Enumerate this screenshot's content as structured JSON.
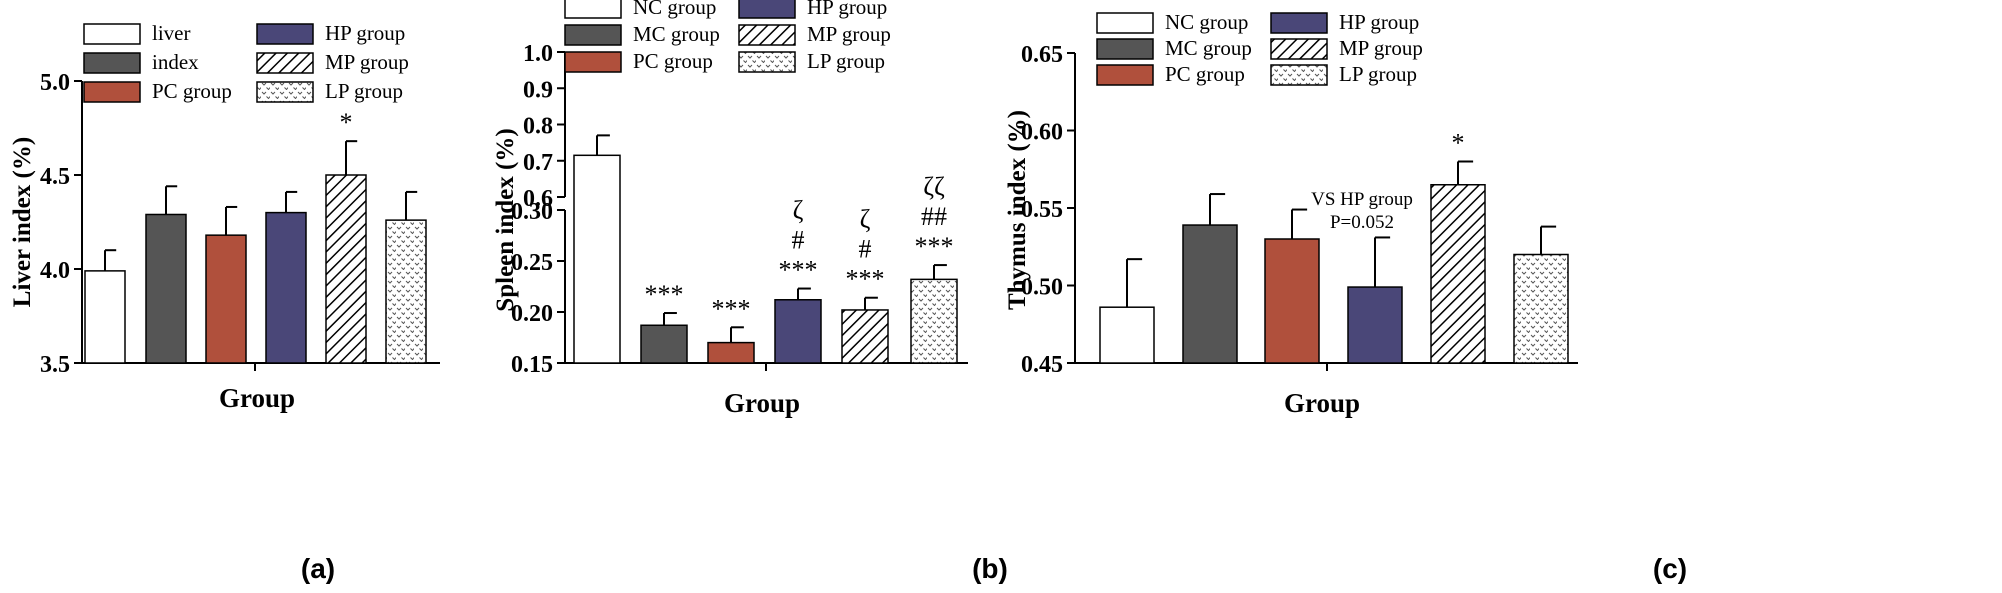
{
  "figure": {
    "panel_labels": [
      "(a)",
      "(b)",
      "(c)"
    ]
  },
  "colors": {
    "NC": "#ffffff",
    "MC": "#555555",
    "PC": "#b0503c",
    "HP": "#4a4778",
    "MP": "hatch",
    "LP": "dots",
    "axis": "#000000"
  },
  "chart_data": [
    {
      "type": "bar",
      "panel": "(a)",
      "title": "",
      "xlabel": "Group",
      "ylabel": "Liver index (%)",
      "ylim": [
        3.5,
        5.0
      ],
      "yticks": [
        "3.5",
        "4.0",
        "4.5",
        "5.0"
      ],
      "categories": [
        "liver",
        "index",
        "PC group",
        "HP group",
        "MP group",
        "LP group"
      ],
      "legend": [
        "liver",
        "index",
        "PC group",
        "HP group",
        "MP group",
        "LP group"
      ],
      "values": [
        3.99,
        4.29,
        4.18,
        4.3,
        4.5,
        4.26
      ],
      "errors": [
        0.11,
        0.15,
        0.15,
        0.11,
        0.18,
        0.15
      ],
      "annotations": [
        "",
        "",
        "",
        "",
        "*",
        ""
      ]
    },
    {
      "type": "bar",
      "panel": "(b)",
      "title": "",
      "xlabel": "Group",
      "ylabel": "Spleen index (%)",
      "broken_axis": true,
      "ylim_lower": [
        0.15,
        0.3
      ],
      "ylim_upper": [
        0.6,
        1.0
      ],
      "yticks_lower": [
        "0.15",
        "0.20",
        "0.25",
        "0.30"
      ],
      "yticks_upper": [
        "0.6",
        "0.7",
        "0.8",
        "0.9",
        "1.0"
      ],
      "categories": [
        "NC group",
        "MC group",
        "PC group",
        "HP group",
        "MP group",
        "LP group"
      ],
      "legend": [
        "NC group",
        "MC group",
        "PC group",
        "HP group",
        "MP group",
        "LP group"
      ],
      "values": [
        0.715,
        0.187,
        0.17,
        0.212,
        0.202,
        0.232
      ],
      "errors": [
        0.055,
        0.012,
        0.015,
        0.011,
        0.012,
        0.014
      ],
      "annotations": [
        [],
        [
          "***"
        ],
        [
          "***"
        ],
        [
          "ζ",
          "#",
          "***"
        ],
        [
          "ζ",
          "#",
          "***"
        ],
        [
          "ζζ",
          "##",
          "***"
        ]
      ]
    },
    {
      "type": "bar",
      "panel": "(c)",
      "title": "",
      "xlabel": "Group",
      "ylabel": "Thymus index (%)",
      "ylim": [
        0.45,
        0.65
      ],
      "yticks": [
        "0.45",
        "0.50",
        "0.55",
        "0.60",
        "0.65"
      ],
      "categories": [
        "NC group",
        "MC group",
        "PC group",
        "HP group",
        "MP group",
        "LP group"
      ],
      "legend": [
        "NC group",
        "MC group",
        "PC group",
        "HP group",
        "MP group",
        "LP group"
      ],
      "values": [
        0.486,
        0.539,
        0.53,
        0.499,
        0.565,
        0.52
      ],
      "errors": [
        0.031,
        0.02,
        0.019,
        0.032,
        0.015,
        0.018
      ],
      "annotations": [
        "",
        "",
        "",
        "",
        "*",
        ""
      ],
      "note_lines": [
        "VS HP group",
        "P=0.052"
      ]
    }
  ]
}
